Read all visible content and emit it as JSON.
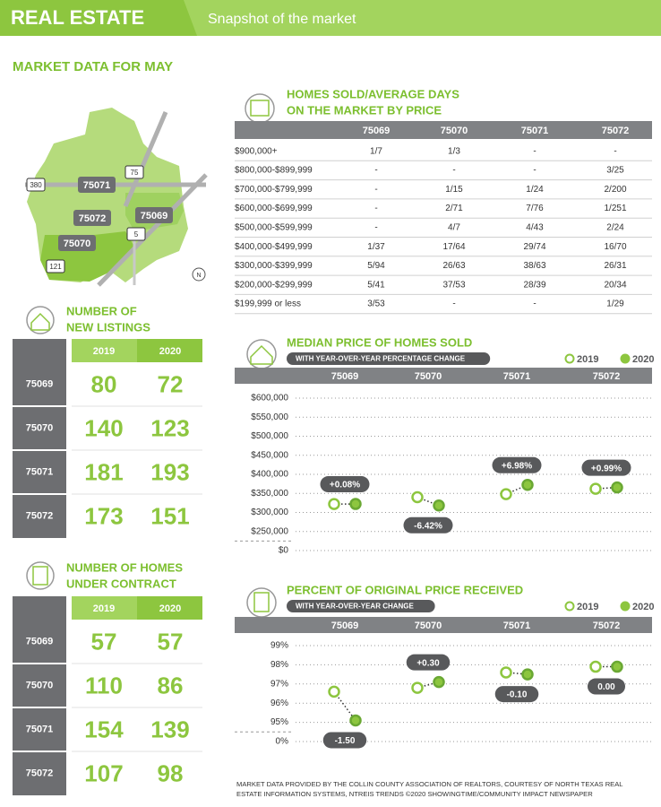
{
  "header": {
    "title": "REAL ESTATE",
    "subtitle": "Snapshot of the market"
  },
  "section_title": "MARKET DATA FOR MAY",
  "map": {
    "zips": [
      "75071",
      "75072",
      "75069",
      "75070"
    ],
    "highways": [
      "380",
      "75",
      "5",
      "121"
    ],
    "compass": "N"
  },
  "homes_sold": {
    "title": [
      "HOMES SOLD/AVERAGE DAYS",
      "ON THE MARKET BY PRICE"
    ],
    "columns": [
      "75069",
      "75070",
      "75071",
      "75072"
    ],
    "rows": [
      [
        "$900,000+",
        "1/7",
        "1/3",
        "-",
        "-"
      ],
      [
        "$800,000-$899,999",
        "-",
        "-",
        "-",
        "3/25"
      ],
      [
        "$700,000-$799,999",
        "-",
        "1/15",
        "1/24",
        "2/200"
      ],
      [
        "$600,000-$699,999",
        "-",
        "2/71",
        "7/76",
        "1/251"
      ],
      [
        "$500,000-$599,999",
        "-",
        "4/7",
        "4/43",
        "2/24"
      ],
      [
        "$400,000-$499,999",
        "1/37",
        "17/64",
        "29/74",
        "16/70"
      ],
      [
        "$300,000-$399,999",
        "5/94",
        "26/63",
        "38/63",
        "26/31"
      ],
      [
        "$200,000-$299,999",
        "5/41",
        "37/53",
        "28/39",
        "20/34"
      ],
      [
        "$199,999 or less",
        "3/53",
        "-",
        "-",
        "1/29"
      ]
    ]
  },
  "new_listings": {
    "title": [
      "NUMBER OF",
      "NEW LISTINGS"
    ],
    "columns": [
      "2019",
      "2020"
    ],
    "rows": [
      {
        "zip": "75069",
        "values": [
          80,
          72
        ]
      },
      {
        "zip": "75070",
        "values": [
          140,
          123
        ]
      },
      {
        "zip": "75071",
        "values": [
          181,
          193
        ]
      },
      {
        "zip": "75072",
        "values": [
          173,
          151
        ]
      }
    ]
  },
  "under_contract": {
    "title": [
      "NUMBER OF HOMES",
      "UNDER CONTRACT"
    ],
    "columns": [
      "2019",
      "2020"
    ],
    "rows": [
      {
        "zip": "75069",
        "values": [
          57,
          57
        ]
      },
      {
        "zip": "75070",
        "values": [
          110,
          86
        ]
      },
      {
        "zip": "75071",
        "values": [
          154,
          139
        ]
      },
      {
        "zip": "75072",
        "values": [
          107,
          98
        ]
      }
    ]
  },
  "chart_data": [
    {
      "type": "dot",
      "title": "MEDIAN PRICE OF HOMES SOLD",
      "subtitle": "WITH YEAR-OVER-YEAR PERCENTAGE CHANGE",
      "categories": [
        "75069",
        "75070",
        "75071",
        "75072"
      ],
      "series": [
        {
          "name": "2019",
          "color": "#8dc63f",
          "marker": "open",
          "values": [
            322000,
            340000,
            348000,
            362000
          ]
        },
        {
          "name": "2020",
          "color": "#8dc63f",
          "marker": "filled",
          "values": [
            322258,
            318172,
            372290,
            365584
          ]
        }
      ],
      "annotations": [
        "+0.08%",
        "-6.42%",
        "+6.98%",
        "+0.99%"
      ],
      "ylim": [
        0,
        600000
      ],
      "yticks": [
        {
          "value": 0,
          "label": "$0"
        },
        {
          "value": 250000,
          "label": "$250,000"
        },
        {
          "value": 300000,
          "label": "$300,000"
        },
        {
          "value": 350000,
          "label": "$350,000"
        },
        {
          "value": 400000,
          "label": "$400,000"
        },
        {
          "value": 450000,
          "label": "$450,000"
        },
        {
          "value": 500000,
          "label": "$500,000"
        },
        {
          "value": 550000,
          "label": "$550,000"
        },
        {
          "value": 600000,
          "label": "$600,000"
        }
      ],
      "axis_break": true,
      "grid": true
    },
    {
      "type": "dot",
      "title": "PERCENT OF ORIGINAL PRICE RECEIVED",
      "subtitle": "WITH YEAR-OVER-YEAR CHANGE",
      "categories": [
        "75069",
        "75070",
        "75071",
        "75072"
      ],
      "series": [
        {
          "name": "2019",
          "color": "#8dc63f",
          "marker": "open",
          "values": [
            96.6,
            96.8,
            97.6,
            97.9
          ]
        },
        {
          "name": "2020",
          "color": "#8dc63f",
          "marker": "filled",
          "values": [
            95.1,
            97.1,
            97.5,
            97.9
          ]
        }
      ],
      "annotations": [
        "-1.50",
        "+0.30",
        "-0.10",
        "0.00"
      ],
      "ylim": [
        0,
        99
      ],
      "yticks": [
        {
          "value": 0,
          "label": "0%"
        },
        {
          "value": 95,
          "label": "95%"
        },
        {
          "value": 96,
          "label": "96%"
        },
        {
          "value": 97,
          "label": "97%"
        },
        {
          "value": 98,
          "label": "98%"
        },
        {
          "value": 99,
          "label": "99%"
        }
      ],
      "axis_break": true,
      "grid": true
    }
  ],
  "footer": [
    "MARKET DATA PROVIDED BY THE COLLIN COUNTY ASSOCIATION OF REALTORS, COURTESY OF NORTH TEXAS REAL",
    "ESTATE INFORMATION SYSTEMS, NTREIS TRENDS ©2020 SHOWINGTIME/COMMUNITY IMPACT NEWSPAPER"
  ]
}
